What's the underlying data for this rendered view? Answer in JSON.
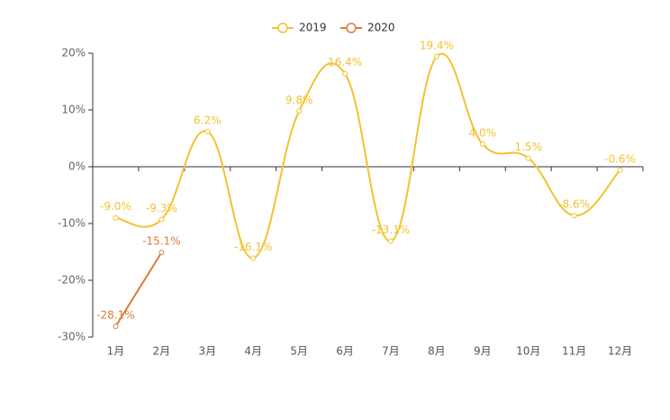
{
  "chart_data": {
    "type": "line",
    "categories": [
      "1月",
      "2月",
      "3月",
      "4月",
      "5月",
      "6月",
      "7月",
      "8月",
      "9月",
      "10月",
      "11月",
      "12月"
    ],
    "series": [
      {
        "name": "2019",
        "color": "#f2c230",
        "values": [
          -9.0,
          -9.3,
          6.2,
          -16.1,
          9.8,
          16.4,
          -13.1,
          19.4,
          4.0,
          1.5,
          -8.6,
          -0.6
        ],
        "value_labels": [
          "-9.0%",
          "-9.3%",
          "6.2%",
          "-16.1%",
          "9.8%",
          "16.4%",
          "-13.1%",
          "19.4%",
          "4.0%",
          "1.5%",
          "-8.6%",
          "-0.6%"
        ]
      },
      {
        "name": "2020",
        "color": "#de7b3a",
        "values": [
          -28.1,
          -15.1,
          null,
          null,
          null,
          null,
          null,
          null,
          null,
          null,
          null,
          null
        ],
        "value_labels": [
          "-28.1%",
          "-15.1%",
          null,
          null,
          null,
          null,
          null,
          null,
          null,
          null,
          null,
          null
        ]
      }
    ],
    "ylim": [
      -30,
      20
    ],
    "yticks": [
      {
        "value": -30,
        "label": "-30%"
      },
      {
        "value": -20,
        "label": "-20%"
      },
      {
        "value": -10,
        "label": "-10%"
      },
      {
        "value": 0,
        "label": "0%"
      },
      {
        "value": 10,
        "label": "10%"
      },
      {
        "value": 20,
        "label": "20%"
      }
    ],
    "smooth": true,
    "legend": "top"
  }
}
